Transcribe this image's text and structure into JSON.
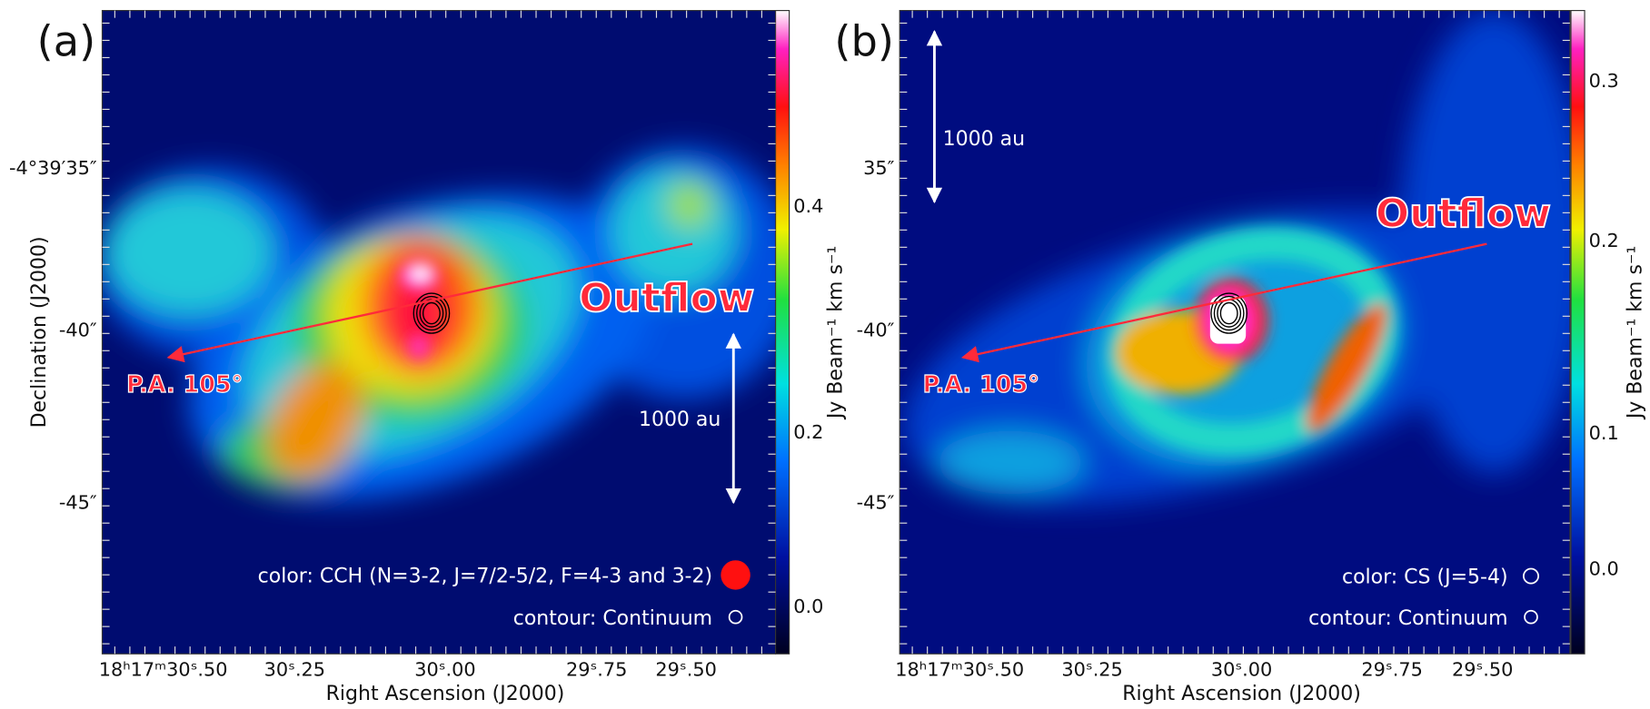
{
  "panels": [
    {
      "label": "(a)",
      "yticks": [
        "-4°39′35″",
        "-40″",
        "-45″"
      ],
      "xticks": [
        "18ʰ17ᵐ30ˢ.50",
        "30ˢ.25",
        "30ˢ.00",
        "29ˢ.75",
        "29ˢ.50"
      ],
      "xlabel": "Right Ascension (J2000)",
      "ylabel": "Declination (J2000)",
      "colorbar_label": "Jy Beam⁻¹ km s⁻¹",
      "colorbar_ticks": [
        "0.0",
        "0.2",
        "0.4"
      ],
      "outflow": "Outflow",
      "pa": "P.A. 105°",
      "scale": "1000 au",
      "color_note": "color: CCH (N=3-2, J=7/2-5/2, F=4-3 and 3-2)",
      "contour_note": "contour: Continuum"
    },
    {
      "label": "(b)",
      "yticks": [
        "35″",
        "-40″",
        "-45″"
      ],
      "xticks": [
        "18ʰ17ᵐ30ˢ.50",
        "30ˢ.25",
        "30ˢ.00",
        "29ˢ.75",
        "29ˢ.50"
      ],
      "xlabel": "Right Ascension (J2000)",
      "colorbar_label": "Jy Beam⁻¹ km s⁻¹",
      "colorbar_ticks": [
        "0.0",
        "0.1",
        "0.2",
        "0.3"
      ],
      "outflow": "Outflow",
      "pa": "P.A. 105°",
      "scale": "1000 au",
      "color_note": "color: CS (J=5-4)",
      "contour_note": "contour: Continuum"
    }
  ]
}
